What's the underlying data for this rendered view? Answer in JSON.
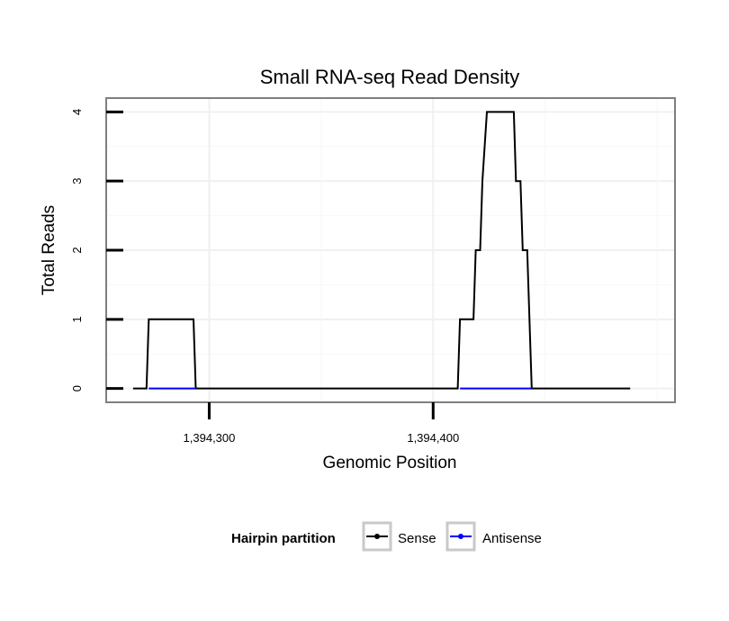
{
  "chart_data": {
    "type": "line",
    "title": "Small RNA-seq Read Density",
    "xlabel": "Genomic Position",
    "ylabel": "Total Reads",
    "xlim": [
      1394254,
      1394508
    ],
    "ylim": [
      -0.2,
      4.2
    ],
    "x_ticks": [
      {
        "value": 1394300,
        "label": "1,394,300"
      },
      {
        "value": 1394400,
        "label": "1,394,400"
      }
    ],
    "y_ticks": [
      {
        "value": 0,
        "label": "0"
      },
      {
        "value": 1,
        "label": "1"
      },
      {
        "value": 2,
        "label": "2"
      },
      {
        "value": 3,
        "label": "3"
      },
      {
        "value": 4,
        "label": "4"
      }
    ],
    "grid": true,
    "legend": {
      "title": "Hairpin partition",
      "position": "bottom",
      "entries": [
        {
          "name": "Sense",
          "color": "#000000"
        },
        {
          "name": "Antisense",
          "color": "#0000ff"
        }
      ]
    },
    "series": [
      {
        "name": "Sense",
        "color": "#000000",
        "x": [
          1394266,
          1394272,
          1394273,
          1394293,
          1394294,
          1394296,
          1394411,
          1394412,
          1394418,
          1394419,
          1394421,
          1394422,
          1394424,
          1394426,
          1394436,
          1394437,
          1394439,
          1394440,
          1394442,
          1394444,
          1394488
        ],
        "y": [
          0,
          0,
          1,
          1,
          0,
          0,
          0,
          1,
          1,
          2,
          2,
          3,
          4,
          4,
          4,
          3,
          3,
          2,
          2,
          0,
          0
        ]
      },
      {
        "name": "Antisense",
        "color": "#0000ff",
        "segments": [
          [
            1394273,
            1394294
          ],
          [
            1394412,
            1394444
          ]
        ],
        "y": 0
      }
    ]
  }
}
